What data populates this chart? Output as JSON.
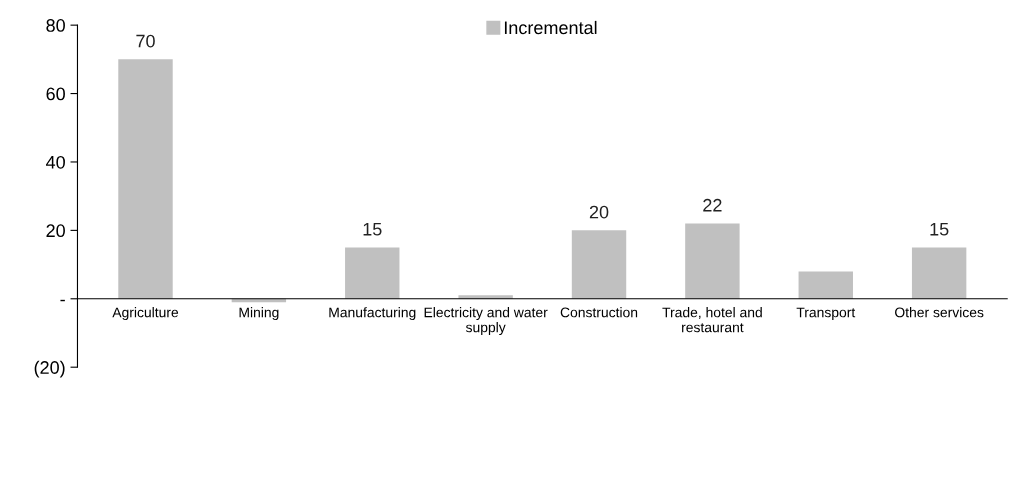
{
  "chart_data": {
    "type": "bar",
    "categories": [
      "Agriculture",
      "Mining",
      "Manufacturing",
      "Electricity and water\nsupply",
      "Construction",
      "Trade, hotel and\nrestaurant",
      "Transport",
      "Other services"
    ],
    "series": [
      {
        "name": "Incremental",
        "color": "#c0c0c0",
        "values": [
          70,
          -1,
          15,
          1,
          20,
          22,
          8,
          15
        ],
        "value_labels": [
          "70",
          null,
          "15",
          null,
          "20",
          "22",
          null,
          "15"
        ]
      }
    ],
    "ylim": [
      -20,
      80
    ],
    "yticks": [
      {
        "value": -20,
        "label": "(20)"
      },
      {
        "value": 0,
        "label": "-"
      },
      20,
      40,
      60,
      80
    ],
    "grid": false,
    "legend": "top"
  }
}
